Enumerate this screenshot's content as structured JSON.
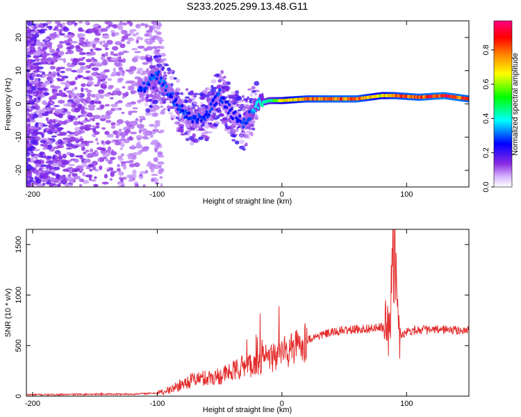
{
  "figure_title": "S233.2025.299.13.48.G11",
  "chart_data": [
    {
      "type": "heatmap",
      "name": "spectrogram",
      "xlabel": "Height of straight line (km)",
      "ylabel": "Frequency (Hz)",
      "xlim": [
        -205,
        150
      ],
      "ylim": [
        -25,
        25
      ],
      "xticks": [
        -200,
        -100,
        0,
        100
      ],
      "yticks": [
        -20,
        -10,
        0,
        10,
        20
      ],
      "colorbar": {
        "label": "Normalized spectral amplitude",
        "range": [
          0,
          0.97
        ],
        "ticks": [
          0.0,
          0.2,
          0.4,
          0.6,
          0.8
        ],
        "tick_labels": [
          "0.0",
          "0.2",
          "0.4",
          "0.6",
          "0.8"
        ],
        "colormap": [
          "#ffffff",
          "#8a2be2",
          "#0000ff",
          "#00ffff",
          "#00ff00",
          "#ffff00",
          "#ff7f00",
          "#ff0000",
          "#ff0080"
        ]
      },
      "description_points": {
        "ridge_x": [
          -110,
          -100,
          -90,
          -80,
          -70,
          -60,
          -50,
          -40,
          -30,
          -20,
          -10,
          0,
          20,
          40,
          60,
          80,
          90,
          110,
          130,
          150
        ],
        "ridge_freq": [
          5,
          9,
          3,
          -2,
          -5,
          -3,
          3,
          -3,
          -6,
          0,
          1,
          1,
          1.5,
          1.5,
          1.5,
          2.5,
          2.5,
          2,
          2.5,
          1.5
        ],
        "ridge_amp": [
          0.3,
          0.35,
          0.3,
          0.3,
          0.3,
          0.3,
          0.3,
          0.25,
          0.3,
          0.4,
          0.5,
          0.7,
          0.85,
          0.9,
          0.9,
          0.7,
          0.85,
          0.9,
          0.95,
          0.9
        ]
      }
    },
    {
      "type": "line",
      "name": "snr",
      "xlabel": "Height of straight line (km)",
      "ylabel": "SNR (10 * v/v)",
      "xlim": [
        -205,
        150
      ],
      "ylim": [
        0,
        1650
      ],
      "xticks": [
        -200,
        -100,
        0,
        100
      ],
      "yticks": [
        0,
        500,
        1000,
        1500
      ],
      "color": "#e32b2b",
      "x": [
        -205,
        -180,
        -150,
        -120,
        -100,
        -90,
        -80,
        -70,
        -60,
        -50,
        -40,
        -30,
        -20,
        -10,
        0,
        10,
        20,
        30,
        40,
        50,
        60,
        70,
        75,
        80,
        85,
        88,
        90,
        92,
        95,
        100,
        110,
        120,
        130,
        140,
        150
      ],
      "values": [
        15,
        15,
        20,
        20,
        30,
        60,
        120,
        170,
        180,
        200,
        240,
        300,
        330,
        380,
        420,
        470,
        560,
        600,
        630,
        650,
        660,
        670,
        670,
        680,
        660,
        1000,
        1600,
        900,
        600,
        640,
        660,
        650,
        660,
        650,
        650
      ]
    }
  ]
}
